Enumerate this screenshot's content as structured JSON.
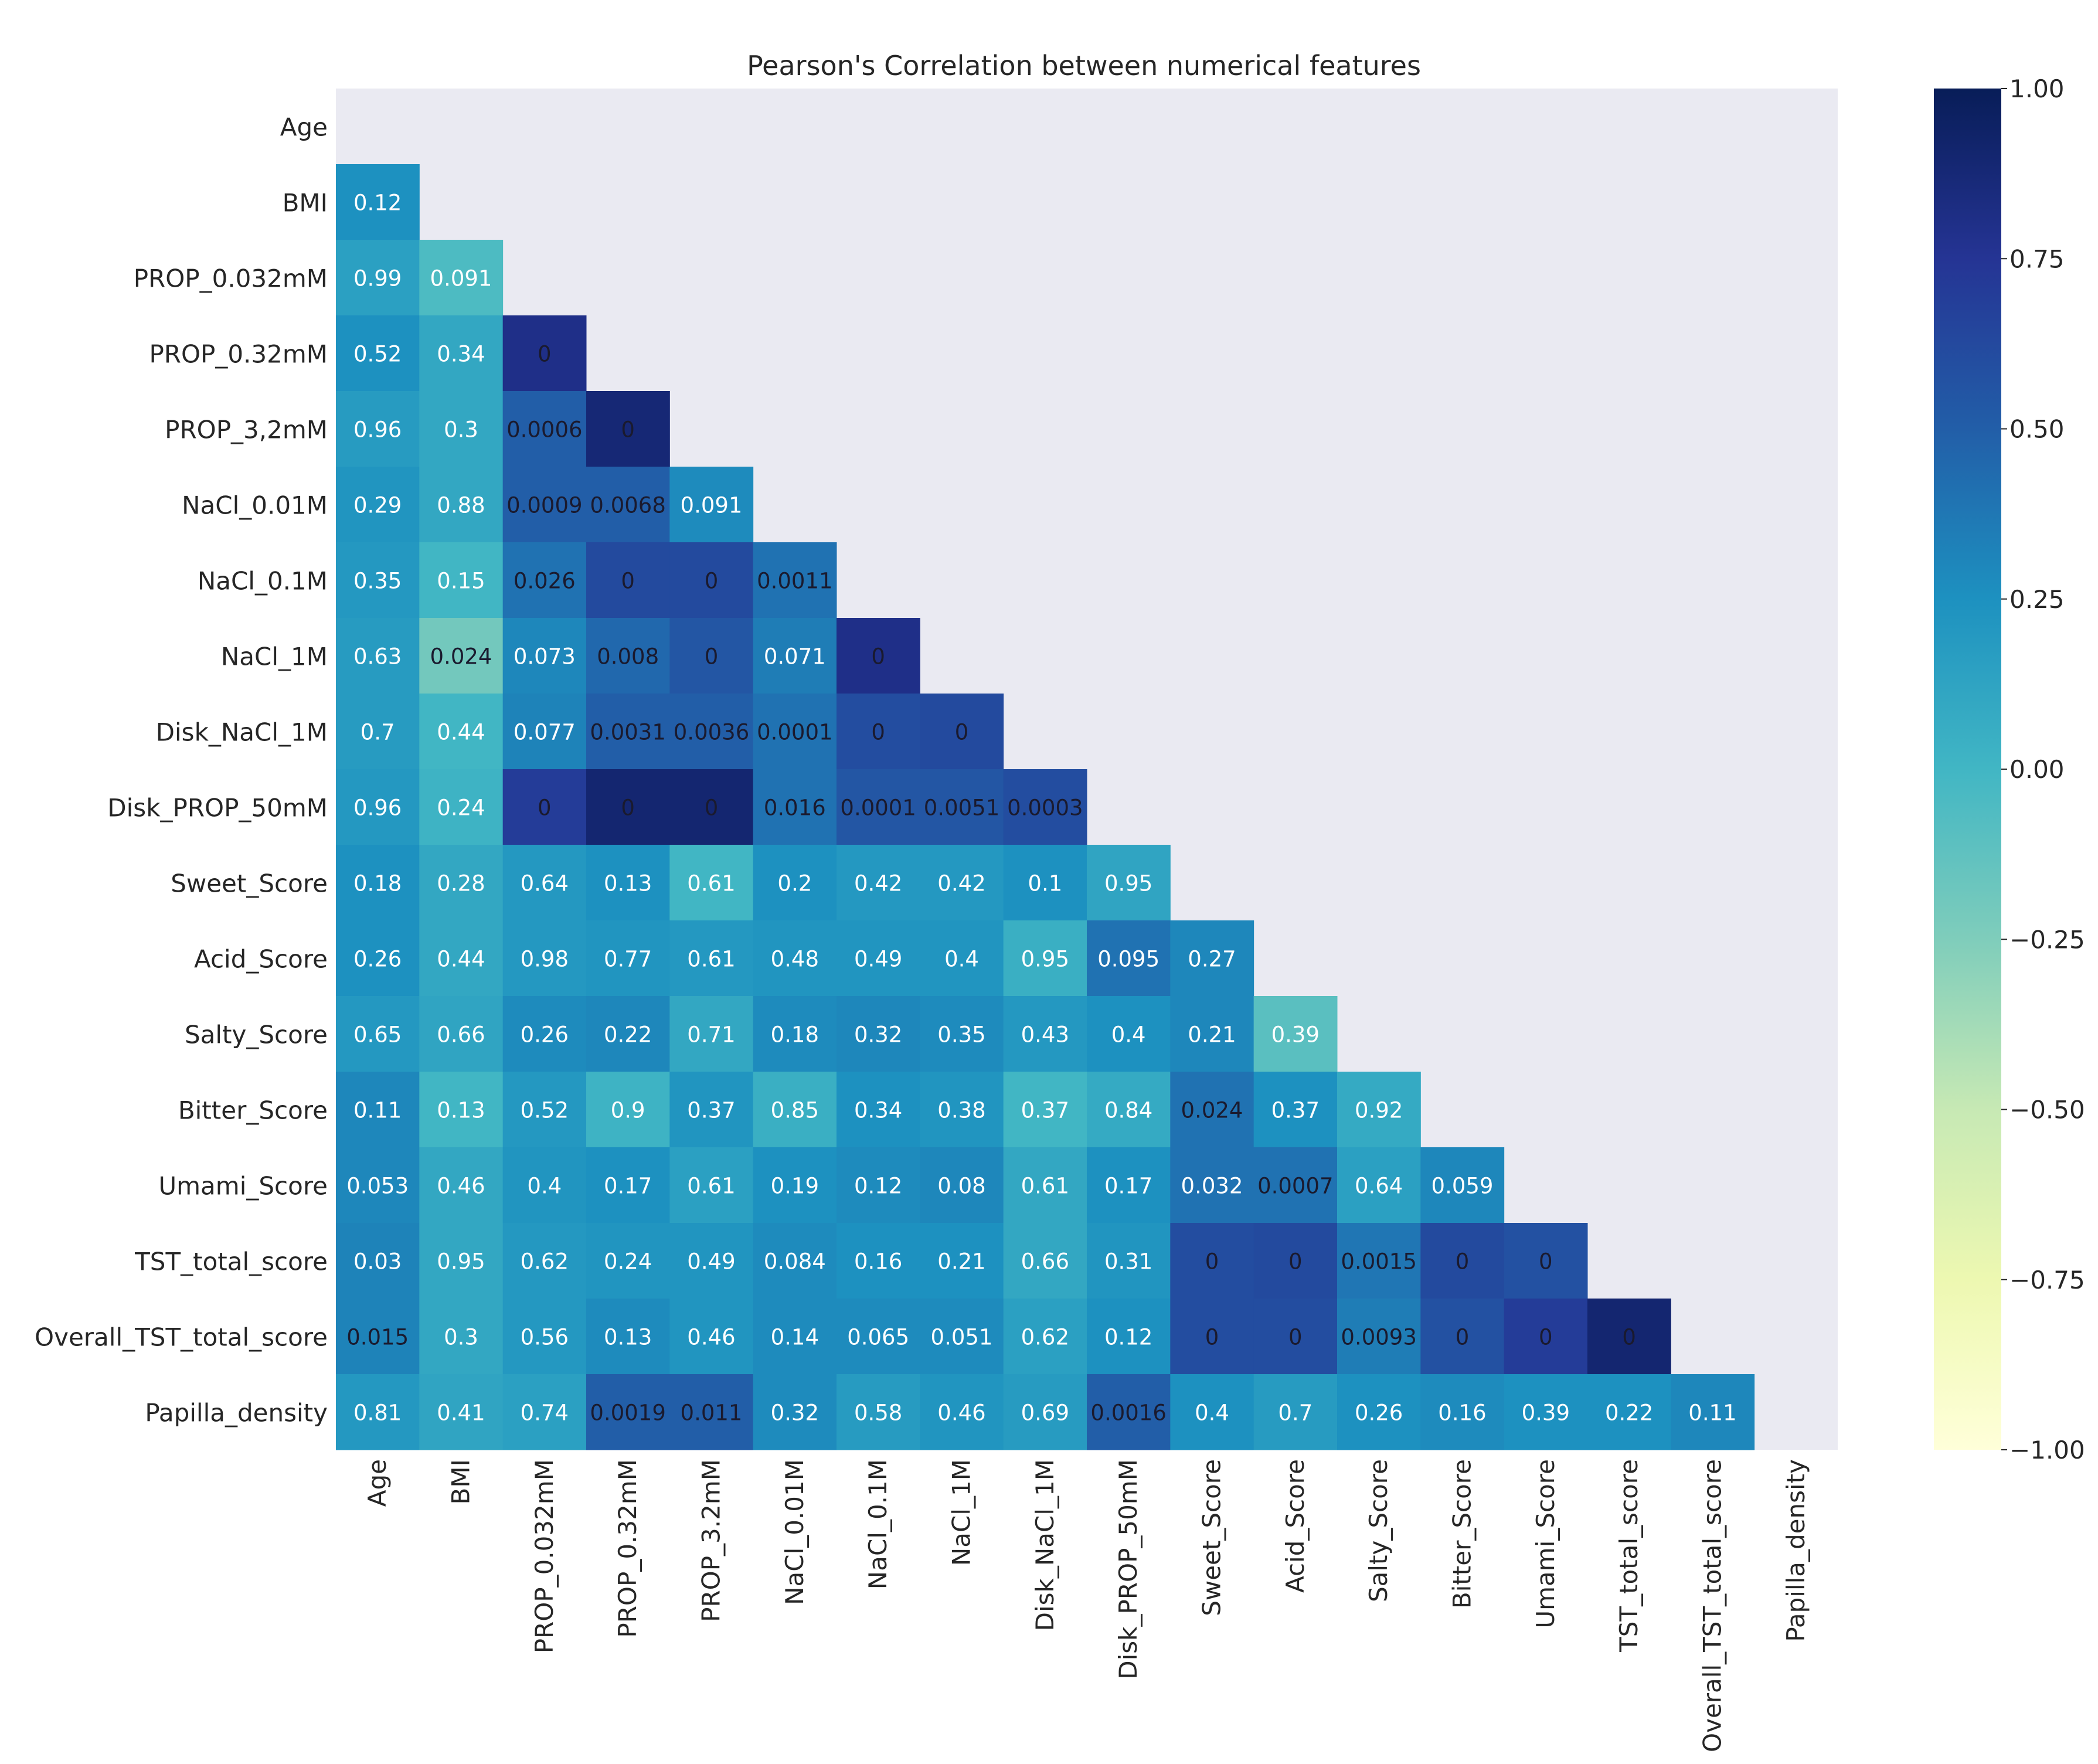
{
  "chart_data": {
    "type": "heatmap",
    "title": "Pearson's Correlation between numerical features",
    "xlabel": "",
    "ylabel": "",
    "labels": [
      "Age",
      "BMI",
      "PROP_0.032mM",
      "PROP_0.32mM",
      "PROP_3,2mM",
      "NaCl_0.01M",
      "NaCl_0.1M",
      "NaCl_1M",
      "Disk_NaCl_1M",
      "Disk_PROP_50mM",
      "Sweet_Score",
      "Acid_Score",
      "Salty_Score",
      "Bitter_Score",
      "Umami_Score",
      "TST_total_score",
      "Overall_TST_total_score",
      "Papilla_density"
    ],
    "x_labels": [
      "Age",
      "BMI",
      "PROP_0.032mM",
      "PROP_0.32mM",
      "PROP_3.2mM",
      "NaCl_0.01M",
      "NaCl_0.1M",
      "NaCl_1M",
      "Disk_NaCl_1M",
      "Disk_PROP_50mM",
      "Sweet_Score",
      "Acid_Score",
      "Salty_Score",
      "Bitter_Score",
      "Umami_Score",
      "TST_total_score",
      "Overall_TST_total_score",
      "Papilla_density"
    ],
    "mask": "upper-triangle-including-diagonal",
    "annotations": [
      [],
      [
        "0.12"
      ],
      [
        "0.99",
        "0.091"
      ],
      [
        "0.52",
        "0.34",
        "0"
      ],
      [
        "0.96",
        "0.3",
        "0.0006",
        "0"
      ],
      [
        "0.29",
        "0.88",
        "0.0009",
        "0.0068",
        "0.091"
      ],
      [
        "0.35",
        "0.15",
        "0.026",
        "0",
        "0",
        "0.0011"
      ],
      [
        "0.63",
        "0.024",
        "0.073",
        "0.008",
        "0",
        "0.071",
        "0"
      ],
      [
        "0.7",
        "0.44",
        "0.077",
        "0.0031",
        "0.0036",
        "0.0001",
        "0",
        "0"
      ],
      [
        "0.96",
        "0.24",
        "0",
        "0",
        "0",
        "0.016",
        "0.0001",
        "0.0051",
        "0.0003"
      ],
      [
        "0.18",
        "0.28",
        "0.64",
        "0.13",
        "0.61",
        "0.2",
        "0.42",
        "0.42",
        "0.1",
        "0.95"
      ],
      [
        "0.26",
        "0.44",
        "0.98",
        "0.77",
        "0.61",
        "0.48",
        "0.49",
        "0.4",
        "0.95",
        "0.095",
        "0.27"
      ],
      [
        "0.65",
        "0.66",
        "0.26",
        "0.22",
        "0.71",
        "0.18",
        "0.32",
        "0.35",
        "0.43",
        "0.4",
        "0.21",
        "0.39"
      ],
      [
        "0.11",
        "0.13",
        "0.52",
        "0.9",
        "0.37",
        "0.85",
        "0.34",
        "0.38",
        "0.37",
        "0.84",
        "0.024",
        "0.37",
        "0.92"
      ],
      [
        "0.053",
        "0.46",
        "0.4",
        "0.17",
        "0.61",
        "0.19",
        "0.12",
        "0.08",
        "0.61",
        "0.17",
        "0.032",
        "0.0007",
        "0.64",
        "0.059"
      ],
      [
        "0.03",
        "0.95",
        "0.62",
        "0.24",
        "0.49",
        "0.084",
        "0.16",
        "0.21",
        "0.66",
        "0.31",
        "0",
        "0",
        "0.0015",
        "0",
        "0"
      ],
      [
        "0.015",
        "0.3",
        "0.56",
        "0.13",
        "0.46",
        "0.14",
        "0.065",
        "0.051",
        "0.62",
        "0.12",
        "0",
        "0",
        "0.0093",
        "0",
        "0",
        "0"
      ],
      [
        "0.81",
        "0.41",
        "0.74",
        "0.0019",
        "0.011",
        "0.32",
        "0.58",
        "0.46",
        "0.69",
        "0.0016",
        "0.4",
        "0.7",
        "0.26",
        "0.16",
        "0.39",
        "0.22",
        "0.11"
      ]
    ],
    "color_values": [
      [],
      [
        0.25
      ],
      [
        0.15,
        -0.05
      ],
      [
        0.25,
        0.1,
        0.8
      ],
      [
        0.18,
        0.1,
        0.5,
        0.88
      ],
      [
        0.22,
        0.1,
        0.5,
        0.5,
        0.28
      ],
      [
        0.2,
        0.0,
        0.4,
        0.62,
        0.62,
        0.4
      ],
      [
        0.18,
        -0.2,
        0.3,
        0.45,
        0.55,
        0.35,
        0.8
      ],
      [
        0.18,
        0.0,
        0.32,
        0.5,
        0.5,
        0.4,
        0.6,
        0.62
      ],
      [
        0.2,
        0.02,
        0.7,
        0.9,
        0.9,
        0.4,
        0.55,
        0.55,
        0.6
      ],
      [
        0.25,
        0.1,
        0.2,
        0.25,
        0.0,
        0.25,
        0.2,
        0.2,
        0.25,
        0.12
      ],
      [
        0.25,
        0.1,
        0.2,
        0.22,
        0.2,
        0.22,
        0.22,
        0.22,
        0.05,
        0.4,
        0.3
      ],
      [
        0.2,
        0.12,
        0.28,
        0.3,
        0.1,
        0.28,
        0.3,
        0.28,
        0.2,
        0.25,
        0.3,
        -0.1
      ],
      [
        0.3,
        0.0,
        0.2,
        0.02,
        0.22,
        0.05,
        0.25,
        0.22,
        0.0,
        0.08,
        0.4,
        0.25,
        0.08
      ],
      [
        0.3,
        0.1,
        0.22,
        0.25,
        0.15,
        0.25,
        0.28,
        0.3,
        0.1,
        0.25,
        0.4,
        0.4,
        0.15,
        0.3
      ],
      [
        0.32,
        0.1,
        0.2,
        0.22,
        0.22,
        0.28,
        0.25,
        0.25,
        0.1,
        0.22,
        0.6,
        0.62,
        0.38,
        0.62,
        0.58
      ],
      [
        0.32,
        0.1,
        0.2,
        0.28,
        0.22,
        0.28,
        0.28,
        0.28,
        0.15,
        0.25,
        0.6,
        0.6,
        0.35,
        0.58,
        0.7,
        0.9
      ],
      [
        0.2,
        0.12,
        0.15,
        0.5,
        0.5,
        0.28,
        0.18,
        0.22,
        0.18,
        0.5,
        0.25,
        0.18,
        0.25,
        0.28,
        0.25,
        0.25,
        0.3
      ]
    ],
    "colorbar": {
      "colormap": "YlGnBu",
      "range": [
        -1.0,
        1.0
      ],
      "ticks": [
        "1.00",
        "0.75",
        "0.50",
        "0.25",
        "0.00",
        "−0.25",
        "−0.50",
        "−0.75",
        "−1.00"
      ],
      "tick_values": [
        1.0,
        0.75,
        0.5,
        0.25,
        0.0,
        -0.25,
        -0.5,
        -0.75,
        -1.0
      ]
    },
    "colors": {
      "background": "#eaeaf2",
      "text_light": "#ffffff",
      "text_dark": "#1a1a2e",
      "axis_text": "#262626"
    }
  }
}
